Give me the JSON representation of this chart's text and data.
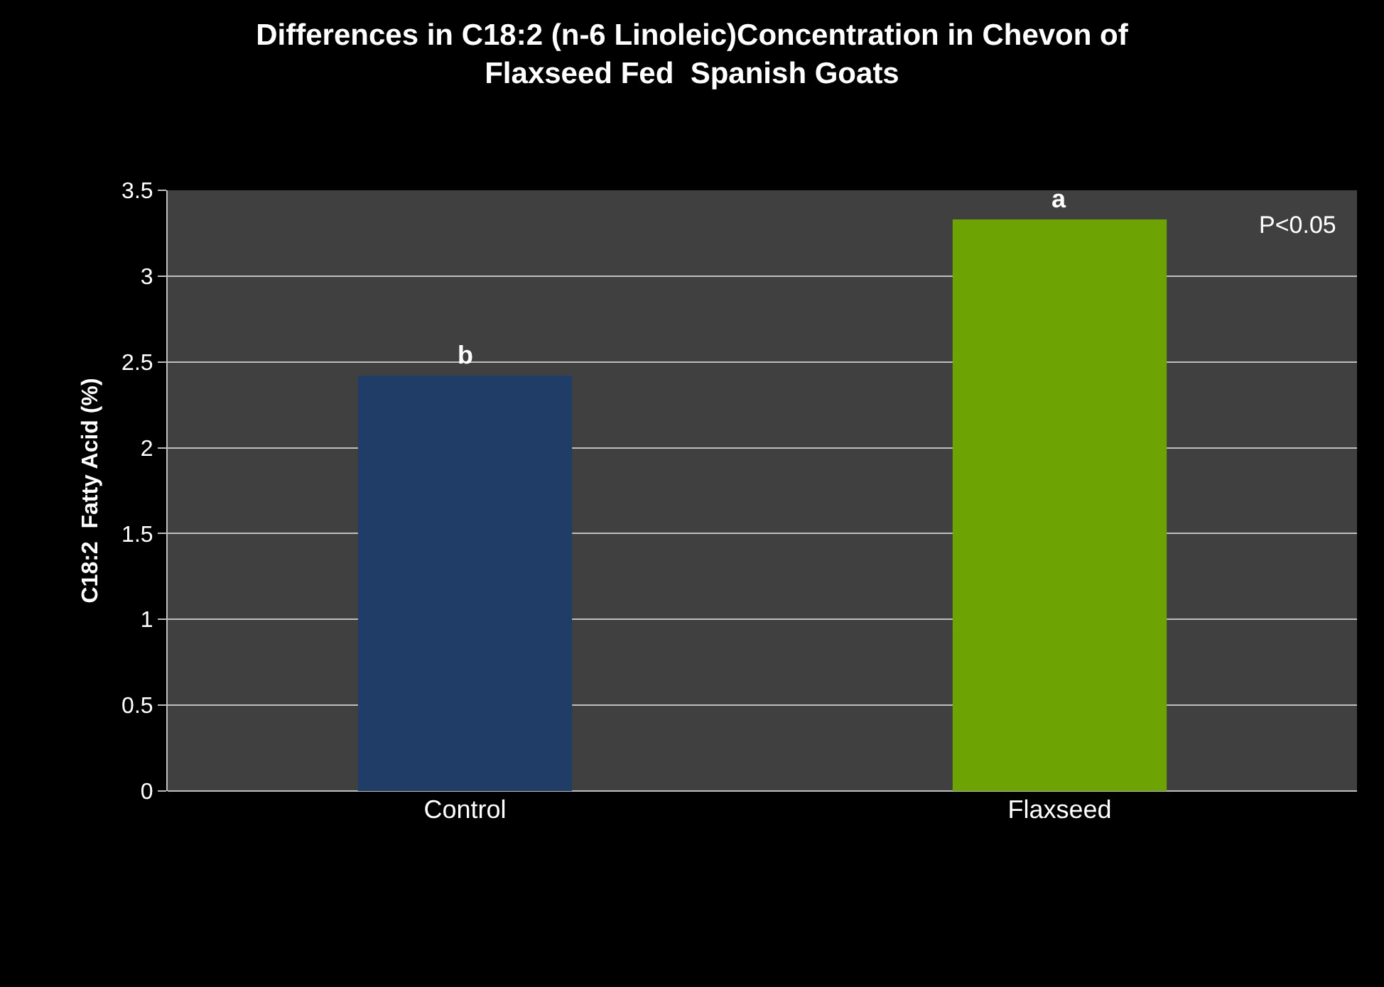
{
  "chart_data": {
    "type": "bar",
    "title": "Differences in C18:2 (n-6 Linoleic)Concentration in Chevon of\nFlaxseed Fed  Spanish Goats",
    "ylabel": "C18:2  Fatty Acid (%)",
    "categories": [
      "Control",
      "Flaxseed"
    ],
    "values": [
      2.42,
      3.33
    ],
    "colors": [
      "#1f3d66",
      "#6ea304"
    ],
    "ylim": [
      0,
      3.5
    ],
    "yticks": [
      0,
      0.5,
      1,
      1.5,
      2,
      2.5,
      3,
      3.5
    ],
    "grid": "y",
    "annotations": [
      {
        "text": "b",
        "x": "Control",
        "y": 2.42
      },
      {
        "text": "a",
        "x": "Flaxseed",
        "y": 3.33
      },
      "P<0.05"
    ]
  }
}
